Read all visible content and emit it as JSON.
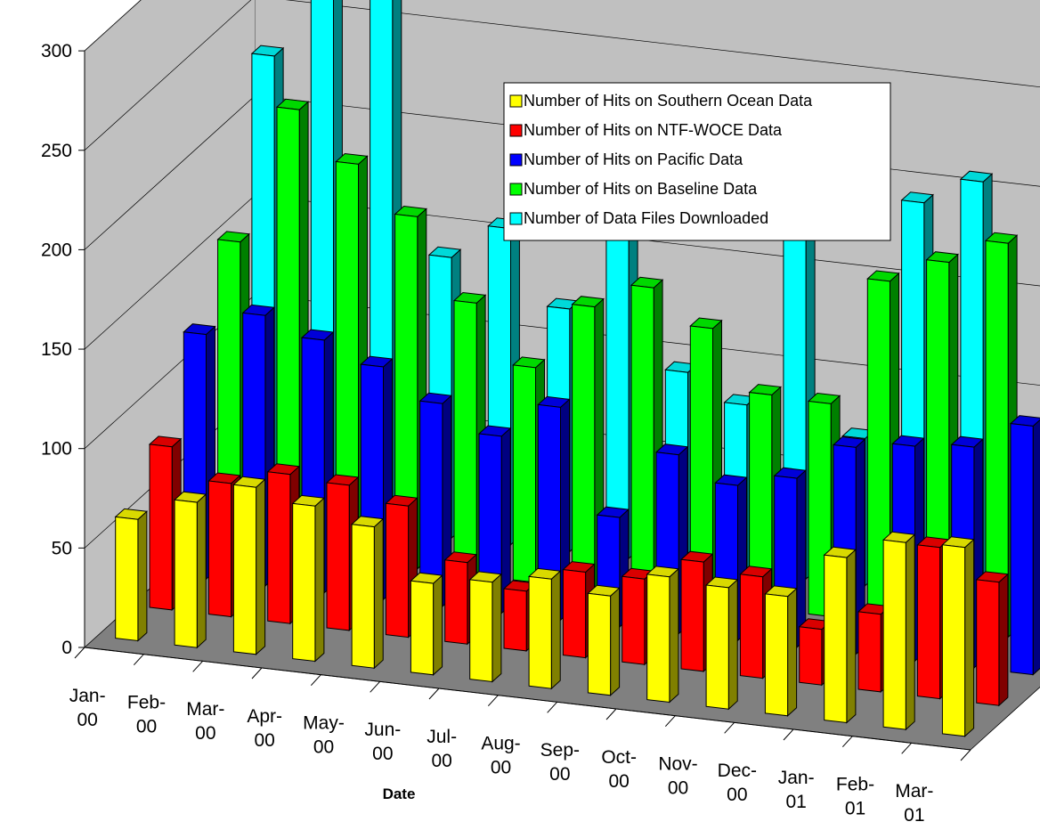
{
  "chart_data": {
    "type": "bar",
    "title": "",
    "xlabel": "Date",
    "ylabel": "",
    "ylim": [
      0,
      300
    ],
    "yticks": [
      0,
      50,
      100,
      150,
      200,
      250,
      300
    ],
    "grid": true,
    "three_d": true,
    "legend_position": "top-right",
    "categories": [
      [
        "Jan-",
        "00"
      ],
      [
        "Feb-",
        "00"
      ],
      [
        "Mar-",
        "00"
      ],
      [
        "Apr-",
        "00"
      ],
      [
        "May-",
        "00"
      ],
      [
        "Jun-",
        "00"
      ],
      [
        "Jul-",
        "00"
      ],
      [
        "Aug-",
        "00"
      ],
      [
        "Sep-",
        "00"
      ],
      [
        "Oct-",
        "00"
      ],
      [
        "Nov-",
        "00"
      ],
      [
        "Dec-",
        "00"
      ],
      [
        "Jan-",
        "01"
      ],
      [
        "Feb-",
        "01"
      ],
      [
        "Mar-",
        "01"
      ]
    ],
    "series": [
      {
        "name": "Number of Hits on Southern Ocean Data",
        "color": "#ffff00",
        "values": [
          61,
          73,
          84,
          78,
          71,
          46,
          50,
          55,
          50,
          63,
          61,
          60,
          83,
          94,
          95
        ]
      },
      {
        "name": "Number of Hits on NTF-WOCE Data",
        "color": "#ff0000",
        "values": [
          82,
          67,
          75,
          73,
          66,
          41,
          30,
          43,
          43,
          55,
          51,
          28,
          39,
          76,
          62
        ]
      },
      {
        "name": "Number of Hits on Pacific Data",
        "color": "#0000ff",
        "values": [
          123,
          136,
          127,
          117,
          102,
          89,
          107,
          55,
          90,
          78,
          85,
          104,
          108,
          111,
          125
        ]
      },
      {
        "name": "Number of Hits on Baseline Data",
        "color": "#00ff00",
        "values": [
          154,
          224,
          200,
          177,
          137,
          108,
          142,
          155,
          138,
          108,
          107,
          172,
          185,
          198,
          170
        ]
      },
      {
        "name": "Number of Data Files Downloaded",
        "color": "#00ffff",
        "values": [
          232,
          275,
          316,
          141,
          159,
          122,
          169,
          97,
          84,
          180,
          74,
          196,
          210,
          76,
          183
        ]
      }
    ]
  }
}
